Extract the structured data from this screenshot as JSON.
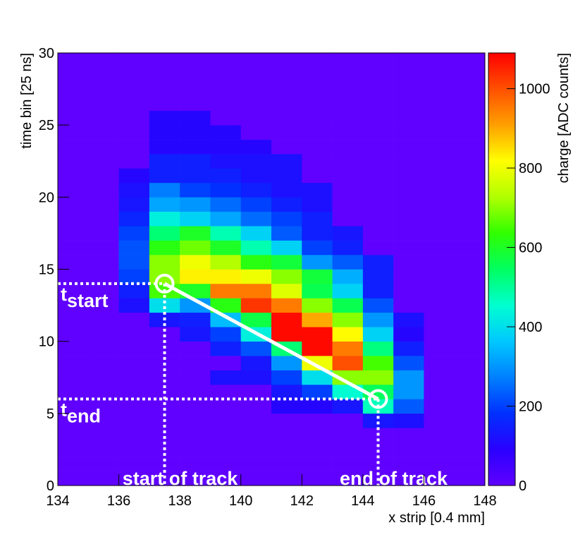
{
  "chart_data": {
    "type": "heatmap",
    "xlabel": "x strip [0.4 mm]",
    "ylabel": "time bin [25 ns]",
    "zlabel": "charge [ADC counts]",
    "xbins": [
      134,
      135,
      136,
      137,
      138,
      139,
      140,
      141,
      142,
      143,
      144,
      145,
      146,
      147,
      148
    ],
    "ybins": [
      0,
      1,
      2,
      3,
      4,
      5,
      6,
      7,
      8,
      9,
      10,
      11,
      12,
      13,
      14,
      15,
      16,
      17,
      18,
      19,
      20,
      21,
      22,
      23,
      24,
      25,
      26,
      27,
      28,
      29,
      30
    ],
    "xlim": [
      134,
      148
    ],
    "ylim": [
      0,
      30
    ],
    "zlim": [
      0,
      1090
    ],
    "xticks": [
      134,
      136,
      138,
      140,
      142,
      144,
      146,
      148
    ],
    "yticks": [
      0,
      5,
      10,
      15,
      20,
      25,
      30
    ],
    "zticks": [
      0,
      200,
      400,
      600,
      800,
      1000
    ],
    "palette": [
      "#6000ff",
      "#2a00ff",
      "#0030ff",
      "#0080ff",
      "#00c8ff",
      "#00ffd0",
      "#00ff60",
      "#30ff00",
      "#b0ff00",
      "#ffff00",
      "#ffa000",
      "#ff5000",
      "#ff0000"
    ],
    "z": [
      [
        0,
        0,
        0,
        0,
        0,
        0,
        0,
        0,
        0,
        0,
        0,
        0,
        0,
        0
      ],
      [
        0,
        0,
        0,
        0,
        0,
        0,
        0,
        0,
        0,
        0,
        0,
        0,
        0,
        0
      ],
      [
        0,
        0,
        0,
        0,
        0,
        0,
        0,
        0,
        0,
        0,
        0,
        0,
        0,
        0
      ],
      [
        0,
        0,
        0,
        0,
        0,
        0,
        0,
        0,
        0,
        0,
        0,
        0,
        0,
        0
      ],
      [
        0,
        0,
        0,
        0,
        0,
        0,
        0,
        0,
        0,
        0,
        130,
        120,
        0,
        0
      ],
      [
        0,
        0,
        0,
        0,
        0,
        0,
        0,
        100,
        100,
        130,
        470,
        230,
        0,
        0
      ],
      [
        0,
        0,
        0,
        0,
        0,
        0,
        0,
        130,
        200,
        450,
        550,
        300,
        0,
        0
      ],
      [
        0,
        0,
        0,
        0,
        0,
        120,
        120,
        200,
        400,
        700,
        700,
        300,
        0,
        0
      ],
      [
        0,
        0,
        0,
        0,
        0,
        0,
        130,
        300,
        800,
        1000,
        650,
        220,
        0,
        0
      ],
      [
        0,
        0,
        0,
        0,
        0,
        150,
        220,
        530,
        1080,
        950,
        520,
        150,
        0,
        0
      ],
      [
        0,
        0,
        0,
        0,
        130,
        200,
        430,
        1080,
        1080,
        820,
        380,
        100,
        0,
        0
      ],
      [
        0,
        0,
        0,
        130,
        150,
        350,
        570,
        1080,
        900,
        700,
        300,
        120,
        0,
        0
      ],
      [
        0,
        0,
        120,
        400,
        300,
        620,
        1030,
        950,
        700,
        560,
        220,
        0,
        0,
        0
      ],
      [
        0,
        0,
        150,
        650,
        600,
        950,
        950,
        780,
        560,
        380,
        150,
        0,
        0,
        0
      ],
      [
        0,
        0,
        200,
        700,
        830,
        830,
        800,
        700,
        580,
        330,
        150,
        0,
        0,
        0
      ],
      [
        0,
        0,
        220,
        700,
        800,
        730,
        620,
        580,
        300,
        230,
        150,
        0,
        0,
        0
      ],
      [
        0,
        0,
        220,
        620,
        680,
        600,
        480,
        380,
        200,
        150,
        0,
        0,
        0,
        0
      ],
      [
        0,
        0,
        200,
        530,
        600,
        480,
        380,
        230,
        150,
        130,
        0,
        0,
        0,
        0
      ],
      [
        0,
        0,
        160,
        430,
        380,
        320,
        250,
        200,
        150,
        0,
        0,
        0,
        0,
        0
      ],
      [
        0,
        0,
        130,
        320,
        300,
        250,
        200,
        150,
        120,
        0,
        0,
        0,
        0,
        0
      ],
      [
        0,
        0,
        120,
        270,
        200,
        180,
        150,
        120,
        120,
        0,
        0,
        0,
        0,
        0
      ],
      [
        0,
        0,
        100,
        150,
        150,
        150,
        120,
        120,
        0,
        0,
        0,
        0,
        0,
        0
      ],
      [
        0,
        0,
        0,
        150,
        150,
        120,
        120,
        120,
        0,
        0,
        0,
        0,
        0,
        0
      ],
      [
        0,
        0,
        0,
        100,
        100,
        100,
        100,
        0,
        0,
        0,
        0,
        0,
        0,
        0
      ],
      [
        0,
        0,
        0,
        100,
        100,
        100,
        0,
        0,
        0,
        0,
        0,
        0,
        0,
        0
      ],
      [
        0,
        0,
        0,
        100,
        100,
        0,
        0,
        0,
        0,
        0,
        0,
        0,
        0,
        0
      ],
      [
        0,
        0,
        0,
        0,
        0,
        0,
        0,
        0,
        0,
        0,
        0,
        0,
        0,
        0
      ],
      [
        0,
        0,
        0,
        0,
        0,
        0,
        0,
        0,
        0,
        0,
        0,
        0,
        0,
        0
      ],
      [
        0,
        0,
        0,
        0,
        0,
        0,
        0,
        0,
        0,
        0,
        0,
        0,
        0,
        0
      ],
      [
        0,
        0,
        0,
        0,
        0,
        0,
        0,
        0,
        0,
        0,
        0,
        0,
        0,
        0
      ]
    ],
    "track": {
      "start": [
        137.5,
        14
      ],
      "end": [
        144.5,
        6
      ]
    },
    "annotations": {
      "t_start": [
        "t",
        "start"
      ],
      "t_end": [
        "t",
        "end"
      ],
      "start_label": "start of track",
      "end_label": "end of track"
    }
  }
}
